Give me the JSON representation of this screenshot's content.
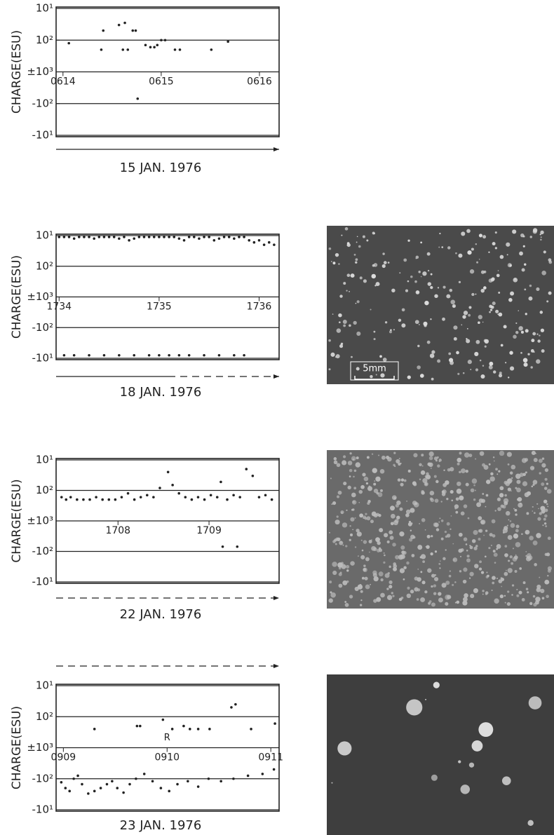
{
  "chart_data": [
    {
      "type": "scatter",
      "title": "15 JAN. 1976",
      "ylabel": "CHARGE(ESU)",
      "yscale": "symlog",
      "grid": true,
      "color": "#222",
      "xlim": [
        613.93,
        616.2
      ],
      "ylim": [
        -0.1,
        0.1
      ],
      "xticks": [
        {
          "value": 614,
          "label": "0614"
        },
        {
          "value": 615,
          "label": "0615"
        },
        {
          "value": 616,
          "label": "0616"
        }
      ],
      "yticks": [
        {
          "value": 0.1,
          "label": "10¹"
        },
        {
          "value": 0.01,
          "label": "10²"
        },
        {
          "value": 0,
          "label": "±10³"
        },
        {
          "value": -0.01,
          "label": "-10²"
        },
        {
          "value": -0.1,
          "label": "-10¹"
        }
      ],
      "x": [
        614.06,
        614.39,
        614.41,
        614.57,
        614.63,
        614.61,
        614.66,
        614.71,
        614.74,
        614.84,
        614.89,
        614.93,
        614.96,
        615.0,
        615.04,
        615.14,
        615.19,
        615.51,
        615.68,
        614.76
      ],
      "values": [
        0.008,
        0.005,
        0.02,
        0.03,
        0.035,
        0.005,
        0.005,
        0.02,
        0.02,
        0.007,
        0.006,
        0.006,
        0.007,
        0.01,
        0.01,
        0.005,
        0.005,
        0.005,
        0.009,
        -0.007
      ]
    },
    {
      "type": "scatter",
      "title": "18 JAN. 1976",
      "ylabel": "CHARGE(ESU)",
      "yscale": "symlog",
      "grid": true,
      "color": "#222",
      "xlim": [
        1733.97,
        1736.2
      ],
      "ylim": [
        -0.1,
        0.1
      ],
      "xticks": [
        1734,
        1735,
        1736
      ],
      "yticks": [
        {
          "value": 0.1,
          "label": "10¹"
        },
        {
          "value": 0.01,
          "label": "10²"
        },
        {
          "value": 0,
          "label": "±10³"
        },
        {
          "value": -0.01,
          "label": "-10²"
        },
        {
          "value": -0.1,
          "label": "-10¹"
        }
      ],
      "x": [
        1734.0,
        1734.05,
        1734.1,
        1734.15,
        1734.2,
        1734.25,
        1734.3,
        1734.35,
        1734.4,
        1734.45,
        1734.5,
        1734.55,
        1734.6,
        1734.65,
        1734.7,
        1734.75,
        1734.8,
        1734.85,
        1734.9,
        1734.95,
        1735.0,
        1735.05,
        1735.1,
        1735.15,
        1735.2,
        1735.25,
        1735.3,
        1735.35,
        1735.4,
        1735.45,
        1735.5,
        1735.55,
        1735.6,
        1735.65,
        1735.7,
        1735.75,
        1735.8,
        1735.85,
        1735.9,
        1735.95,
        1736.0,
        1736.05,
        1736.1,
        1736.15,
        1734.05,
        1734.15,
        1734.3,
        1734.45,
        1734.6,
        1734.75,
        1734.9,
        1735.0,
        1735.1,
        1735.2,
        1735.3,
        1735.45,
        1735.6,
        1735.75,
        1735.85
      ],
      "values": [
        0.09,
        0.09,
        0.09,
        0.08,
        0.09,
        0.09,
        0.09,
        0.08,
        0.09,
        0.09,
        0.09,
        0.09,
        0.08,
        0.09,
        0.07,
        0.08,
        0.09,
        0.09,
        0.09,
        0.09,
        0.09,
        0.09,
        0.09,
        0.09,
        0.08,
        0.07,
        0.09,
        0.09,
        0.08,
        0.09,
        0.09,
        0.07,
        0.08,
        0.09,
        0.09,
        0.08,
        0.09,
        0.09,
        0.07,
        0.06,
        0.07,
        0.05,
        0.06,
        0.05,
        -0.08,
        -0.08,
        -0.08,
        -0.08,
        -0.08,
        -0.08,
        -0.08,
        -0.08,
        -0.08,
        -0.08,
        -0.08,
        -0.08,
        -0.08,
        -0.08,
        -0.08
      ]
    },
    {
      "type": "scatter",
      "title": "22 JAN. 1976",
      "ylabel": "CHARGE(ESU)",
      "yscale": "symlog",
      "grid": true,
      "color": "#222",
      "xlim": [
        1707.32,
        1709.77
      ],
      "ylim": [
        -0.1,
        0.1
      ],
      "xticks": [
        1708,
        1709
      ],
      "yticks": [
        {
          "value": 0.1,
          "label": "10¹"
        },
        {
          "value": 0.01,
          "label": "10²"
        },
        {
          "value": 0,
          "label": "±10³"
        },
        {
          "value": -0.01,
          "label": "-10²"
        },
        {
          "value": -0.1,
          "label": "-10¹"
        }
      ],
      "x": [
        1707.38,
        1707.43,
        1707.48,
        1707.55,
        1707.62,
        1707.69,
        1707.76,
        1707.83,
        1707.9,
        1707.97,
        1708.04,
        1708.11,
        1708.18,
        1708.25,
        1708.32,
        1708.39,
        1708.46,
        1708.55,
        1708.6,
        1708.67,
        1708.74,
        1708.81,
        1708.88,
        1708.95,
        1709.02,
        1709.09,
        1709.13,
        1709.2,
        1709.27,
        1709.34,
        1709.41,
        1709.48,
        1709.55,
        1709.62,
        1709.69,
        1709.15,
        1709.31
      ],
      "values": [
        0.006,
        0.005,
        0.006,
        0.005,
        0.005,
        0.005,
        0.006,
        0.005,
        0.005,
        0.005,
        0.006,
        0.008,
        0.005,
        0.006,
        0.007,
        0.006,
        0.012,
        0.04,
        0.015,
        0.008,
        0.006,
        0.005,
        0.006,
        0.005,
        0.007,
        0.006,
        0.019,
        0.005,
        0.007,
        0.006,
        0.05,
        0.03,
        0.006,
        0.007,
        0.005,
        -0.007,
        -0.007
      ]
    },
    {
      "type": "scatter",
      "title": "23 JAN. 1976",
      "ylabel": "CHARGE(ESU)",
      "yscale": "symlog",
      "grid": true,
      "color": "#222",
      "xlim": [
        908.93,
        911.08
      ],
      "ylim": [
        -0.1,
        0.1
      ],
      "xticks": [
        {
          "value": 909,
          "label": "0909"
        },
        {
          "value": 910,
          "label": "0910"
        },
        {
          "value": 911,
          "label": "0911"
        }
      ],
      "yticks": [
        {
          "value": 0.1,
          "label": "10¹"
        },
        {
          "value": 0.01,
          "label": "10²"
        },
        {
          "value": 0,
          "label": "±10³"
        },
        {
          "value": -0.01,
          "label": "-10²"
        },
        {
          "value": -0.1,
          "label": "-10¹"
        }
      ],
      "annotation": "R",
      "x": [
        909.3,
        909.71,
        909.74,
        909.96,
        910.05,
        910.16,
        910.22,
        910.3,
        910.41,
        910.62,
        910.66,
        910.81,
        911.04,
        908.98,
        909.02,
        909.06,
        909.1,
        909.14,
        909.18,
        909.24,
        909.3,
        909.36,
        909.42,
        909.47,
        909.52,
        909.58,
        909.64,
        909.7,
        909.78,
        909.86,
        909.94,
        910.02,
        910.1,
        910.2,
        910.3,
        910.4,
        910.52,
        910.64,
        910.78,
        910.92,
        911.03
      ],
      "values": [
        0.004,
        0.005,
        0.005,
        0.008,
        0.004,
        0.005,
        0.004,
        0.004,
        0.004,
        0.02,
        0.025,
        0.004,
        0.006,
        -0.013,
        -0.02,
        -0.025,
        -0.01,
        -0.008,
        -0.015,
        -0.03,
        -0.025,
        -0.02,
        -0.015,
        -0.012,
        -0.02,
        -0.028,
        -0.015,
        -0.01,
        -0.007,
        -0.012,
        -0.02,
        -0.025,
        -0.015,
        -0.012,
        -0.018,
        -0.01,
        -0.012,
        -0.01,
        -0.008,
        -0.007,
        -0.005
      ]
    }
  ],
  "photos": {
    "scale_label": "5mm"
  }
}
